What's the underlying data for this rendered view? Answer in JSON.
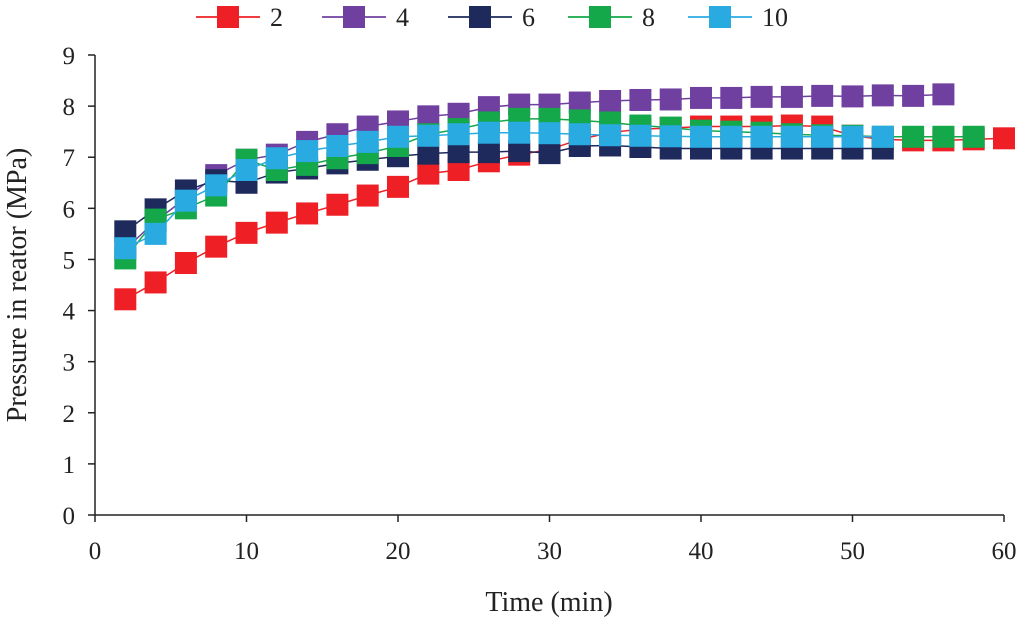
{
  "chart_data": {
    "type": "line",
    "title": "",
    "xlabel": "Time (min)",
    "ylabel": "Pressure in reator (MPa)",
    "xlim": [
      0,
      60
    ],
    "ylim": [
      0,
      9
    ],
    "xticks": [
      0,
      10,
      20,
      30,
      40,
      50,
      60
    ],
    "yticks": [
      0,
      1,
      2,
      3,
      4,
      5,
      6,
      7,
      8,
      9
    ],
    "grid": false,
    "legend_position": "top",
    "marker": "square",
    "series": [
      {
        "name": "2",
        "color": "#ee1f25",
        "x": [
          2,
          4,
          6,
          8,
          10,
          12,
          14,
          16,
          18,
          20,
          22,
          24,
          26,
          28,
          30,
          32,
          34,
          36,
          38,
          40,
          42,
          44,
          46,
          48,
          50,
          52,
          54,
          56,
          58,
          60
        ],
        "values": [
          4.22,
          4.55,
          4.93,
          5.25,
          5.52,
          5.72,
          5.9,
          6.07,
          6.25,
          6.42,
          6.68,
          6.75,
          6.92,
          7.05,
          7.15,
          7.35,
          7.48,
          7.55,
          7.57,
          7.6,
          7.6,
          7.6,
          7.62,
          7.6,
          7.42,
          7.35,
          7.33,
          7.33,
          7.35,
          7.37
        ]
      },
      {
        "name": "4",
        "color": "#7040a0",
        "x": [
          2,
          4,
          6,
          8,
          10,
          12,
          14,
          16,
          18,
          20,
          22,
          24,
          26,
          28,
          30,
          32,
          34,
          36,
          38,
          40,
          42,
          44,
          46,
          48,
          50,
          52,
          54,
          56
        ],
        "values": [
          5.2,
          5.75,
          6.2,
          6.65,
          6.95,
          7.05,
          7.3,
          7.45,
          7.6,
          7.7,
          7.8,
          7.85,
          7.98,
          8.03,
          8.03,
          8.07,
          8.1,
          8.12,
          8.13,
          8.16,
          8.16,
          8.18,
          8.18,
          8.2,
          8.19,
          8.21,
          8.2,
          8.23
        ]
      },
      {
        "name": "6",
        "color": "#1e2a5c",
        "x": [
          2,
          4,
          6,
          8,
          10,
          12,
          14,
          16,
          18,
          20,
          22,
          24,
          26,
          28,
          30,
          32,
          34,
          36,
          38,
          40,
          42,
          44,
          46,
          48,
          50,
          52
        ],
        "values": [
          5.55,
          5.98,
          6.35,
          6.55,
          6.5,
          6.7,
          6.78,
          6.88,
          6.95,
          7.02,
          7.07,
          7.1,
          7.1,
          7.12,
          7.08,
          7.22,
          7.23,
          7.2,
          7.17,
          7.17,
          7.17,
          7.17,
          7.17,
          7.17,
          7.17,
          7.17
        ]
      },
      {
        "name": "8",
        "color": "#14a84a",
        "x": [
          2,
          4,
          6,
          8,
          10,
          12,
          14,
          16,
          18,
          20,
          22,
          24,
          26,
          28,
          30,
          32,
          34,
          36,
          38,
          40,
          42,
          44,
          46,
          48,
          50,
          52,
          54,
          56,
          58
        ],
        "values": [
          5.02,
          5.78,
          6.0,
          6.25,
          6.95,
          6.75,
          6.85,
          6.98,
          7.08,
          7.22,
          7.45,
          7.55,
          7.68,
          7.75,
          7.75,
          7.72,
          7.68,
          7.62,
          7.58,
          7.52,
          7.5,
          7.48,
          7.45,
          7.43,
          7.42,
          7.4,
          7.4,
          7.4,
          7.4
        ]
      },
      {
        "name": "10",
        "color": "#29abe2",
        "x": [
          2,
          4,
          6,
          8,
          10,
          12,
          14,
          16,
          18,
          20,
          22,
          24,
          26,
          28,
          30,
          32,
          34,
          36,
          38,
          40,
          42,
          44,
          46,
          48,
          50,
          52
        ],
        "values": [
          5.22,
          5.5,
          6.15,
          6.45,
          6.75,
          6.98,
          7.12,
          7.22,
          7.3,
          7.4,
          7.42,
          7.45,
          7.48,
          7.48,
          7.47,
          7.45,
          7.43,
          7.42,
          7.41,
          7.4,
          7.4,
          7.4,
          7.4,
          7.4,
          7.4,
          7.4
        ]
      }
    ]
  }
}
